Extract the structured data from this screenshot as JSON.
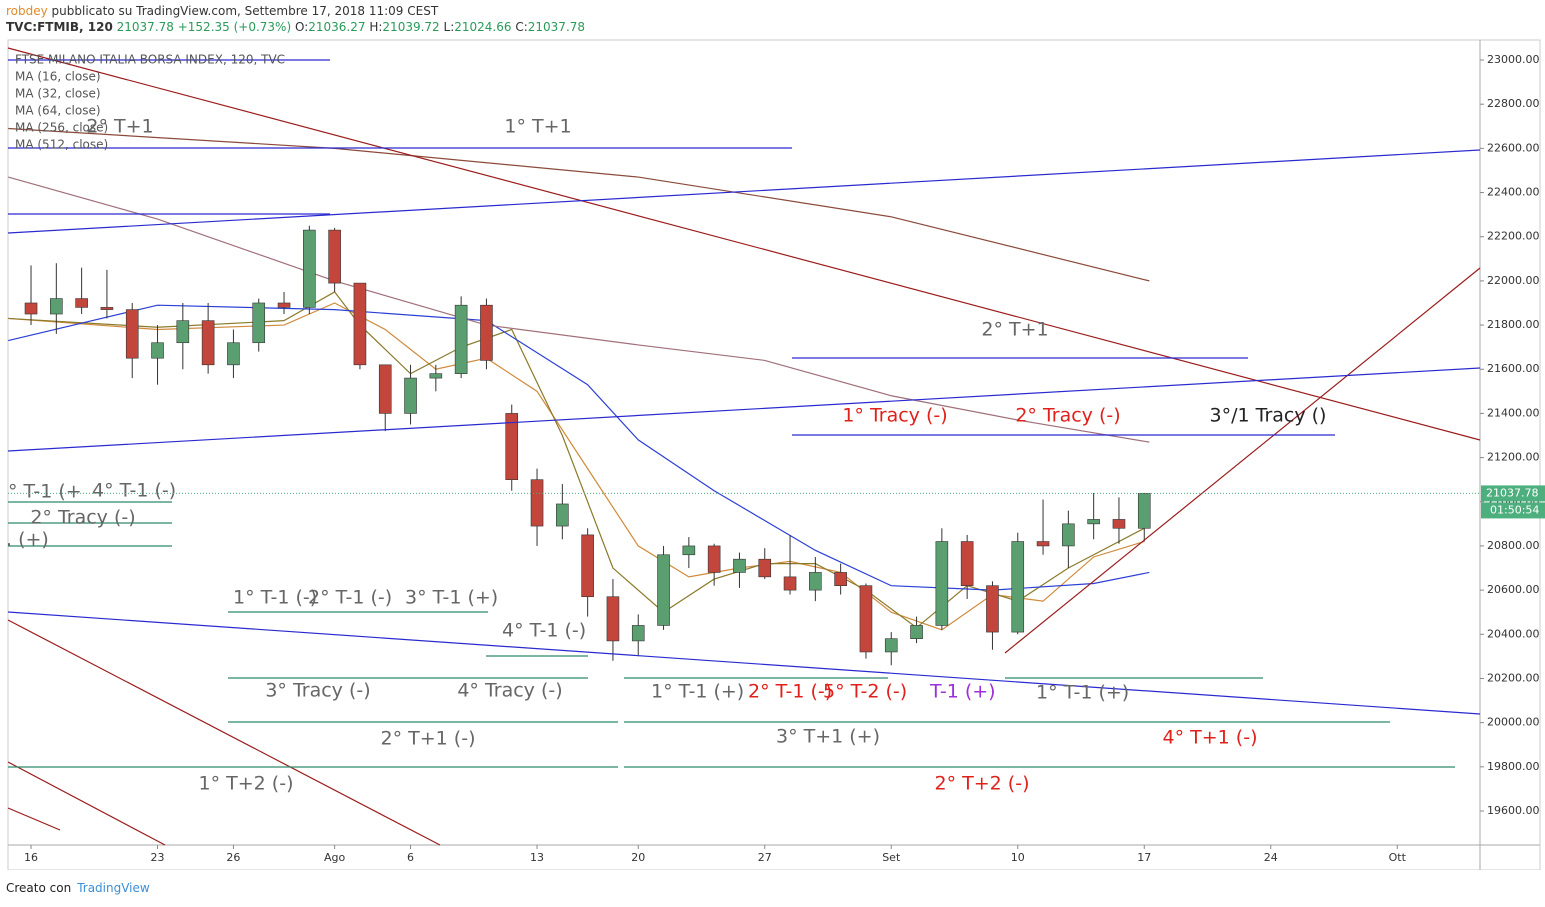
{
  "header": {
    "user": "robdey",
    "published": " pubblicato su TradingView.com, Settembre 17, 2018 11:09 CEST",
    "symbol": "TVC:FTMIB, 120",
    "last": 21037.78,
    "change": "+152.35 (+0.73%)",
    "o_label": "O:",
    "open": 21036.27,
    "h_label": "H:",
    "high": 21039.72,
    "l_label": "L:",
    "low": 21024.66,
    "c_label": "C:",
    "close": 21037.78
  },
  "chart_data": {
    "type": "candlestick",
    "title": "FTSE MILANO ITALIA BORSA INDEX, 120, TVC",
    "x": [
      0,
      1,
      2,
      3,
      4,
      5,
      6,
      7,
      8,
      9,
      10,
      11,
      12,
      13,
      14,
      15,
      16,
      17,
      18,
      19,
      20,
      21,
      22,
      23,
      24,
      25,
      26,
      27,
      28,
      29,
      30,
      31,
      32,
      33,
      34,
      35,
      36,
      37,
      38,
      39,
      40,
      41,
      42,
      43,
      44
    ],
    "open": [
      21900,
      21850,
      21920,
      21880,
      21870,
      21650,
      21720,
      21820,
      21620,
      21720,
      21900,
      21880,
      22230,
      21990,
      21620,
      21400,
      21560,
      21580,
      21890,
      21400,
      21100,
      20890,
      20850,
      20570,
      20370,
      20440,
      20760,
      20800,
      20680,
      20740,
      20660,
      20600,
      20680,
      20620,
      20320,
      20380,
      20440,
      20820,
      20620,
      20410,
      20820,
      20800,
      20900,
      20920,
      20880
    ],
    "high": [
      22070,
      22080,
      22060,
      22050,
      21900,
      21800,
      21900,
      21900,
      21780,
      21920,
      21950,
      22250,
      22240,
      21980,
      21600,
      21620,
      21620,
      21930,
      21920,
      21440,
      21150,
      21080,
      20880,
      20650,
      20490,
      20800,
      20840,
      20810,
      20770,
      20790,
      20850,
      20750,
      20720,
      20630,
      20410,
      20480,
      20880,
      20850,
      20640,
      20860,
      21010,
      20960,
      21040,
      21020,
      21040
    ],
    "low": [
      21800,
      21760,
      21850,
      21830,
      21560,
      21530,
      21600,
      21580,
      21560,
      21680,
      21850,
      21850,
      21950,
      21600,
      21320,
      21350,
      21500,
      21560,
      21600,
      21050,
      20800,
      20830,
      20480,
      20280,
      20300,
      20420,
      20700,
      20620,
      20610,
      20650,
      20580,
      20550,
      20580,
      20290,
      20260,
      20360,
      20420,
      20560,
      20330,
      20400,
      20760,
      20700,
      20830,
      20810,
      20820
    ],
    "close": [
      21850,
      21920,
      21880,
      21870,
      21650,
      21720,
      21820,
      21620,
      21720,
      21900,
      21880,
      22230,
      21990,
      21620,
      21400,
      21560,
      21580,
      21890,
      21640,
      21100,
      20890,
      20990,
      20570,
      20370,
      20440,
      20760,
      20800,
      20680,
      20740,
      20660,
      20600,
      20680,
      20620,
      20320,
      20380,
      20440,
      20820,
      20620,
      20410,
      20820,
      20800,
      20900,
      20920,
      20880,
      21037.78
    ],
    "up_color": "#5b9e6f",
    "down_color": "#c3463c",
    "series": [
      {
        "name": "MA (16, close)",
        "color": "#d08a3c",
        "x": [
          -0.9,
          5,
          10,
          12,
          14,
          16,
          18,
          20,
          22,
          24,
          26,
          28,
          30,
          32,
          34,
          36,
          38,
          40,
          42,
          44
        ],
        "values": [
          21830,
          21780,
          21800,
          21900,
          21780,
          21600,
          21650,
          21500,
          21150,
          20800,
          20660,
          20700,
          20730,
          20680,
          20500,
          20420,
          20580,
          20550,
          20750,
          20820
        ]
      },
      {
        "name": "MA (32, close)",
        "color": "#8a7a2a",
        "x": [
          -0.9,
          5,
          10,
          12,
          13,
          15,
          17,
          19,
          21,
          23,
          25,
          27,
          29,
          31,
          33,
          35,
          37,
          39,
          41,
          44
        ],
        "values": [
          21830,
          21790,
          21820,
          21950,
          21800,
          21580,
          21700,
          21780,
          21300,
          20700,
          20500,
          20650,
          20720,
          20720,
          20600,
          20430,
          20620,
          20550,
          20700,
          20880
        ]
      },
      {
        "name": "MA (64, close)",
        "color": "#2b3fd6",
        "x": [
          -0.9,
          5,
          12,
          18,
          22,
          24,
          27,
          31,
          34,
          38,
          42,
          44.2
        ],
        "values": [
          21730,
          21890,
          21870,
          21820,
          21530,
          21280,
          21050,
          20780,
          20620,
          20600,
          20630,
          20680
        ]
      },
      {
        "name": "MA (256, close)",
        "color": "#a0707a",
        "x": [
          -0.9,
          5,
          12,
          18,
          24,
          29,
          34,
          39,
          44.2
        ],
        "values": [
          22470,
          22280,
          22000,
          21800,
          21710,
          21640,
          21480,
          21370,
          21270
        ]
      },
      {
        "name": "MA (512, close)",
        "color": "#8b4a3a",
        "x": [
          -0.9,
          12,
          24,
          34,
          44.2
        ],
        "values": [
          22690,
          22600,
          22470,
          22290,
          22000
        ]
      }
    ],
    "ylim": [
      19446,
      23068
    ],
    "yticks": [
      {
        "value": 19600,
        "label": "19600.00"
      },
      {
        "value": 19800,
        "label": "19800.00"
      },
      {
        "value": 20000,
        "label": "20000.00"
      },
      {
        "value": 20200,
        "label": "20200.00"
      },
      {
        "value": 20400,
        "label": "20400.00"
      },
      {
        "value": 20600,
        "label": "20600.00"
      },
      {
        "value": 20800,
        "label": "20800.00"
      },
      {
        "value": 21000,
        "label": "21000.00"
      },
      {
        "value": 21200,
        "label": "21200.00"
      },
      {
        "value": 21400,
        "label": "21400.00"
      },
      {
        "value": 21600,
        "label": "21600.00"
      },
      {
        "value": 21800,
        "label": "21800.00"
      },
      {
        "value": 22000,
        "label": "22000.00"
      },
      {
        "value": 22200,
        "label": "22200.00"
      },
      {
        "value": 22400,
        "label": "22400.00"
      },
      {
        "value": 22600,
        "label": "22600.00"
      },
      {
        "value": 22800,
        "label": "22800.00"
      },
      {
        "value": 23000,
        "label": "23000.00"
      }
    ],
    "xlim": [
      -0.91,
      57.27
    ],
    "xticks": [
      {
        "value": 0,
        "label": "16"
      },
      {
        "value": 5,
        "label": "23"
      },
      {
        "value": 8,
        "label": "26"
      },
      {
        "value": 12,
        "label": "Ago"
      },
      {
        "value": 15,
        "label": "6"
      },
      {
        "value": 20,
        "label": "13"
      },
      {
        "value": 24,
        "label": "20"
      },
      {
        "value": 29,
        "label": "27"
      },
      {
        "value": 34,
        "label": "Set"
      },
      {
        "value": 39,
        "label": "10"
      },
      {
        "value": 44,
        "label": "17"
      },
      {
        "value": 49,
        "label": "24"
      },
      {
        "value": 54,
        "label": "Ott"
      }
    ],
    "last_price": 21037.78,
    "countdown": "01:50:54",
    "annotations": [
      {
        "text": "2° T+1",
        "color": "#666666"
      },
      {
        "text": "1° T+1",
        "color": "#666666"
      },
      {
        "text": "2° T+1",
        "color": "#666666"
      },
      {
        "text": "1° Tracy (-)",
        "color": "#e0201a"
      },
      {
        "text": "2° Tracy (-)",
        "color": "#e0201a"
      },
      {
        "text": "3°/1 Tracy ()",
        "color": "#222222"
      },
      {
        "text": "° T-1 (+",
        "color": "#666666"
      },
      {
        "text": "4° T-1 (-)",
        "color": "#666666"
      },
      {
        "text": "2° Tracy (-)",
        "color": "#666666"
      },
      {
        "text": ". (+)",
        "color": "#666666"
      },
      {
        "text": "1° T-1 (-)",
        "color": "#666666"
      },
      {
        "text": "2° T-1 (-)",
        "color": "#666666"
      },
      {
        "text": "3° T-1 (+)",
        "color": "#666666"
      },
      {
        "text": "4° T-1 (-)",
        "color": "#666666"
      },
      {
        "text": "3° Tracy (-)",
        "color": "#666666"
      },
      {
        "text": "4° Tracy (-)",
        "color": "#666666"
      },
      {
        "text": "1° T-1 (+)",
        "color": "#666666"
      },
      {
        "text": "2° T-1 (-)",
        "color": "#e0201a"
      },
      {
        "text": "5° T-2 (-)",
        "color": "#e0201a"
      },
      {
        "text": "T-1 (+)",
        "color": "#9b30d9"
      },
      {
        "text": "1° T-1 (+)",
        "color": "#666666"
      },
      {
        "text": "2° T+1 (-)",
        "color": "#666666"
      },
      {
        "text": "3° T+1 (+)",
        "color": "#666666"
      },
      {
        "text": "4° T+1 (-)",
        "color": "#e0201a"
      },
      {
        "text": "1° T+2 (-)",
        "color": "#666666"
      },
      {
        "text": "2° T+2 (-)",
        "color": "#e0201a"
      }
    ]
  },
  "footer": {
    "made_with": "Creato con",
    "brand": "TradingView"
  }
}
